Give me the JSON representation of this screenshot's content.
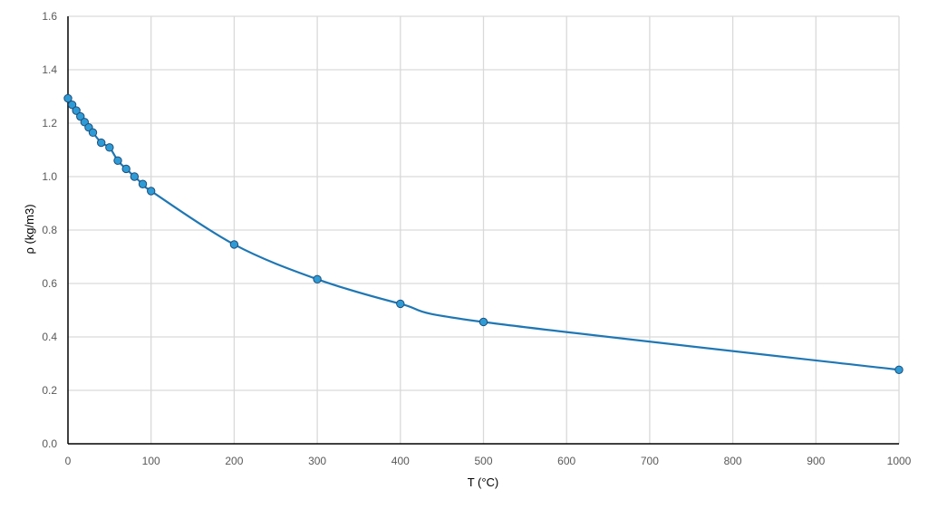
{
  "chart_data": {
    "type": "scatter",
    "title": "",
    "xlabel": "T (°C)",
    "ylabel": "ρ (kg/m3)",
    "xlim": [
      0,
      1000
    ],
    "ylim": [
      0,
      1.6
    ],
    "x_ticks": [
      0,
      100,
      200,
      300,
      400,
      500,
      600,
      700,
      800,
      900,
      1000
    ],
    "y_ticks": [
      "0.0",
      "0.2",
      "0.4",
      "0.6",
      "0.8",
      "1.0",
      "1.2",
      "1.4",
      "1.6"
    ],
    "grid": true,
    "legend": "none",
    "smooth_line": true,
    "colors": {
      "line": "#1f77b4",
      "marker": "#2e9bd6",
      "marker_edge": "#1f4e79",
      "grid": "#d9d9d9",
      "axis": "#000000"
    },
    "series": [
      {
        "x": [
          0,
          5,
          10,
          15,
          20,
          25,
          30,
          40,
          50,
          60,
          70,
          80,
          90,
          100,
          200,
          300,
          400,
          500,
          1000
        ],
        "y": [
          1.293,
          1.269,
          1.247,
          1.225,
          1.204,
          1.184,
          1.165,
          1.127,
          1.109,
          1.06,
          1.029,
          1.0,
          0.972,
          0.946,
          0.746,
          0.616,
          0.524,
          0.456,
          0.277
        ]
      }
    ]
  }
}
